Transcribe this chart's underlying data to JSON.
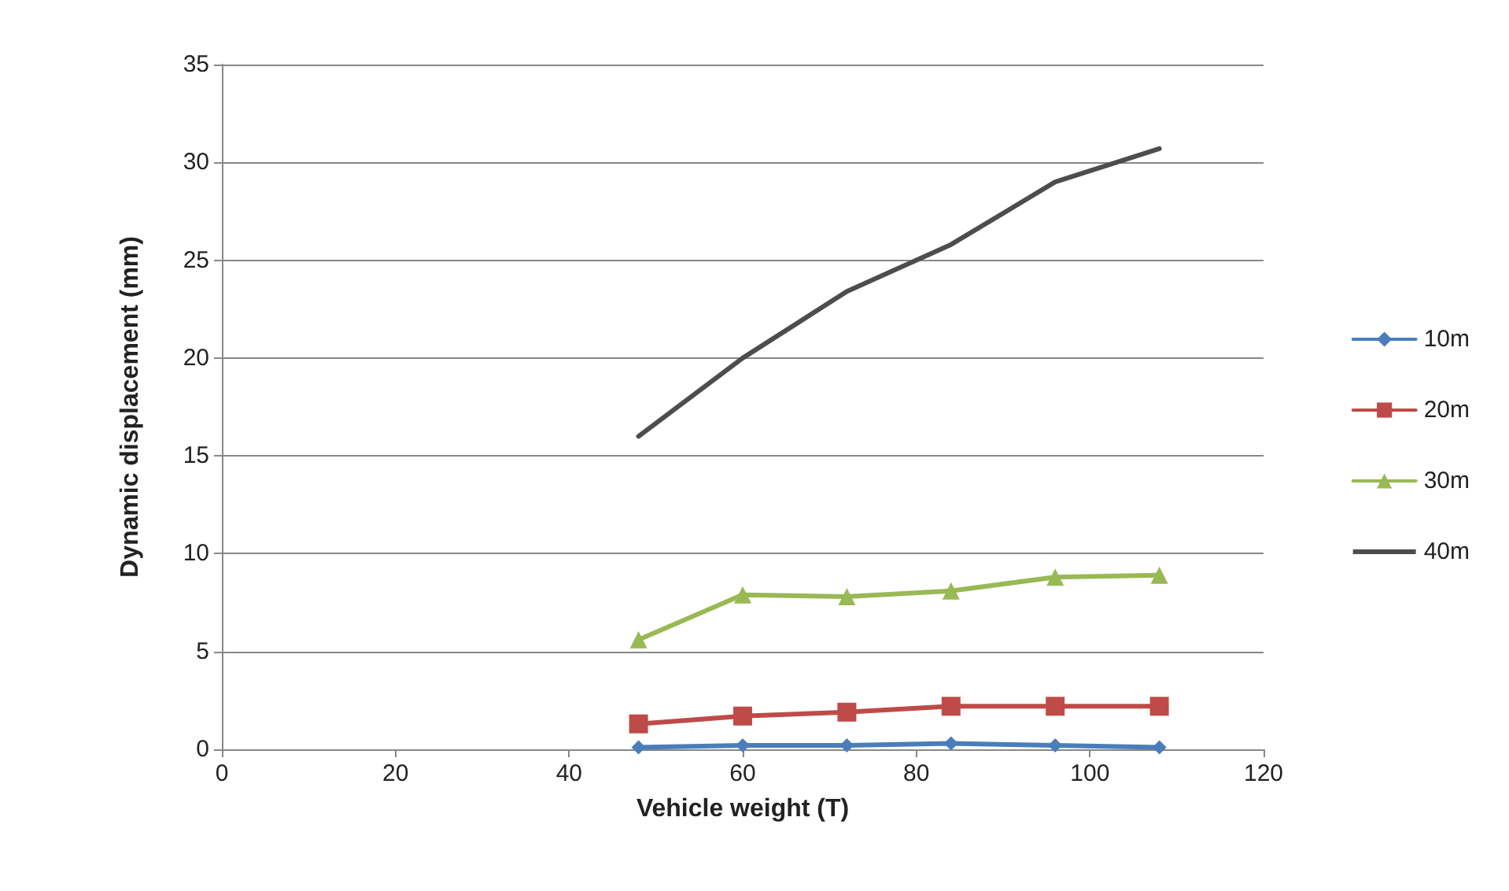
{
  "chart_data": {
    "type": "line",
    "xlabel": "Vehicle weight (T)",
    "ylabel": "Dynamic displacement (mm)",
    "x": [
      48,
      60,
      72,
      84,
      96,
      108
    ],
    "series": [
      {
        "name": "10m",
        "color": "#4a7ebb",
        "marker": "diamond",
        "values": [
          0.1,
          0.2,
          0.2,
          0.3,
          0.2,
          0.1
        ]
      },
      {
        "name": "20m",
        "color": "#be4b48",
        "marker": "square",
        "values": [
          1.3,
          1.7,
          1.9,
          2.2,
          2.2,
          2.2
        ]
      },
      {
        "name": "30m",
        "color": "#98b954",
        "marker": "triangle",
        "values": [
          5.6,
          7.9,
          7.8,
          8.1,
          8.8,
          8.9
        ]
      },
      {
        "name": "40m",
        "color": "#4d4d4d",
        "marker": "none",
        "values": [
          16,
          20,
          23.4,
          25.8,
          29,
          30.7
        ]
      }
    ],
    "xlim": [
      0,
      120
    ],
    "xticks": [
      0,
      20,
      40,
      60,
      80,
      100,
      120
    ],
    "ylim": [
      0,
      35
    ],
    "yticks": [
      0,
      5,
      10,
      15,
      20,
      25,
      30,
      35
    ],
    "grid": "y",
    "legend": "right"
  }
}
